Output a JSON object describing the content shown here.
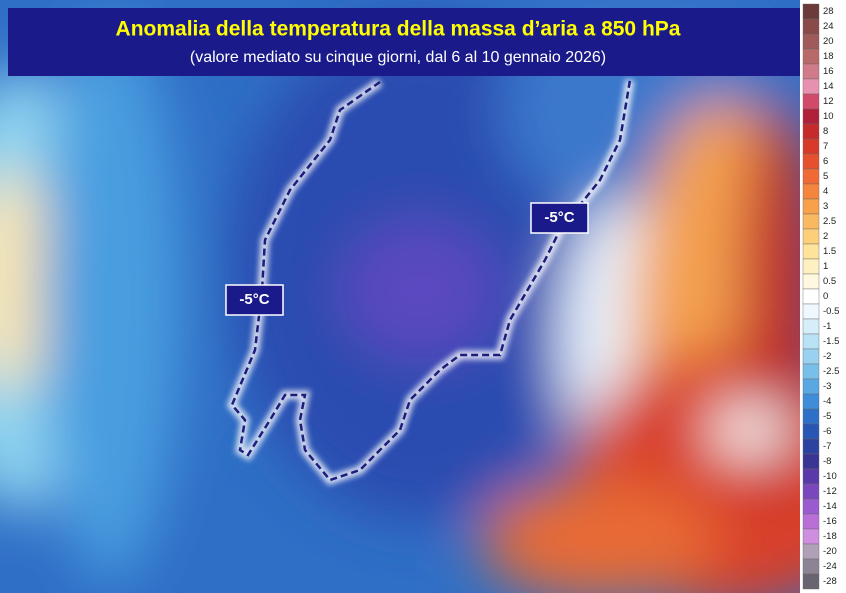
{
  "header": {
    "title": "Anomalia della temperatura della massa d’aria a 850 hPa",
    "subtitle": "(valore mediato su cinque giorni, dal 6 al 10 gennaio 2026)"
  },
  "map": {
    "labels": [
      "-5°C",
      "-5°C"
    ]
  },
  "legend": {
    "values": [
      28,
      24,
      20,
      18,
      16,
      14,
      12,
      10,
      8,
      7,
      6,
      5,
      4,
      3,
      2.5,
      2,
      1.5,
      1,
      0.5,
      0,
      -0.5,
      -1,
      -1.5,
      -2,
      -2.5,
      -3,
      -4,
      -5,
      -6,
      -7,
      -8,
      -10,
      -12,
      -14,
      -16,
      -18,
      -20,
      -24,
      -28
    ],
    "colors": [
      "#6b3a3a",
      "#8a4a4a",
      "#a05a5a",
      "#b86a6a",
      "#d07a8a",
      "#e890b0",
      "#d24a6a",
      "#b0203a",
      "#c62a2a",
      "#d83a2a",
      "#e5502e",
      "#ef6a34",
      "#f5843c",
      "#f8a04a",
      "#fab860",
      "#fcd07a",
      "#fde49a",
      "#fef0c0",
      "#fff8e0",
      "#ffffff",
      "#f0f8ff",
      "#d6eefa",
      "#b8e2f6",
      "#98d2f0",
      "#78c0ea",
      "#5aa8e2",
      "#3f8cd8",
      "#2e6fc8",
      "#2856b4",
      "#2c42a0",
      "#3a3494",
      "#5a3aa8",
      "#7a48bc",
      "#9a5ad0",
      "#b870d8",
      "#d08ee0",
      "#b0a0b8",
      "#8c8494",
      "#6a6470"
    ]
  }
}
